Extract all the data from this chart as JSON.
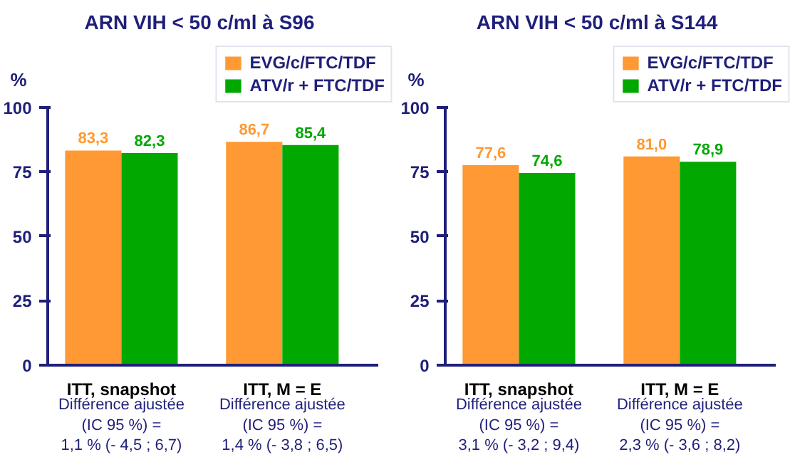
{
  "chart_data": [
    {
      "type": "bar",
      "title": "ARN VIH < 50 c/ml à S96",
      "ylabel": "%",
      "categories": [
        "ITT, snapshot",
        "ITT, M = E"
      ],
      "series": [
        {
          "name": "EVG/c/FTC/TDF",
          "color": "#ff9933",
          "values": [
            83.3,
            86.7
          ],
          "value_labels": [
            "83,3",
            "86,7"
          ]
        },
        {
          "name": "ATV/r + FTC/TDF",
          "color": "#00a800",
          "values": [
            82.3,
            85.4
          ],
          "value_labels": [
            "82,3",
            "85,4"
          ]
        }
      ],
      "ylim": [
        0,
        100
      ],
      "yticks": [
        0,
        25,
        50,
        75,
        100
      ],
      "legend": "top right",
      "annotations": [
        "Différence ajustée\n(IC 95 %) =\n1,1 % (- 4,5 ; 6,7)",
        "Différence ajustée\n(IC 95 %) =\n1,4 % (- 3,8 ; 6,5)"
      ]
    },
    {
      "type": "bar",
      "title": "ARN VIH < 50 c/ml à S144",
      "ylabel": "%",
      "categories": [
        "ITT, snapshot",
        "ITT, M = E"
      ],
      "series": [
        {
          "name": "EVG/c/FTC/TDF",
          "color": "#ff9933",
          "values": [
            77.6,
            81.0
          ],
          "value_labels": [
            "77,6",
            "81,0"
          ]
        },
        {
          "name": "ATV/r + FTC/TDF",
          "color": "#00a800",
          "values": [
            74.6,
            78.9
          ],
          "value_labels": [
            "74,6",
            "78,9"
          ]
        }
      ],
      "ylim": [
        0,
        100
      ],
      "yticks": [
        0,
        25,
        50,
        75,
        100
      ],
      "legend": "top right",
      "annotations": [
        "Différence ajustée\n(IC 95 %) =\n3,1 % (- 3,2 ; 9,4)",
        "Différence ajustée\n(IC 95 %) =\n2,3 % (- 3,6 ; 8,2)"
      ]
    }
  ]
}
